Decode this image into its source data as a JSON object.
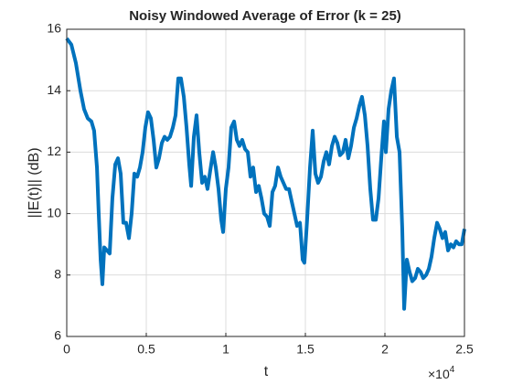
{
  "chart_data": {
    "type": "line",
    "title": "Noisy Windowed Average of Error (k = 25)",
    "x_label": "t",
    "y_label": "||E(t)|| (dB)",
    "x_multiplier": {
      "base": "×10",
      "exponent": "4"
    },
    "xlim": [
      0,
      25000
    ],
    "ylim": [
      6,
      16
    ],
    "xticks": [
      0,
      {
        "value": 5000,
        "label": "0.5"
      },
      {
        "value": 10000,
        "label": "1"
      },
      {
        "value": 15000,
        "label": "1.5"
      },
      {
        "value": 20000,
        "label": "2"
      },
      {
        "value": 25000,
        "label": "2.5"
      }
    ],
    "yticks": [
      6,
      8,
      10,
      12,
      14,
      16
    ],
    "grid": true,
    "series": [
      {
        "color": "#0072bd",
        "x": [
          0,
          290,
          575,
          860,
          1090,
          1320,
          1550,
          1720,
          1900,
          2010,
          2130,
          2240,
          2360,
          2530,
          2700,
          2870,
          3050,
          3220,
          3390,
          3560,
          3730,
          3910,
          4080,
          4250,
          4430,
          4600,
          4770,
          4940,
          5110,
          5290,
          5460,
          5630,
          5800,
          5980,
          6150,
          6320,
          6490,
          6670,
          6840,
          7010,
          7180,
          7360,
          7530,
          7700,
          7820,
          7990,
          8160,
          8330,
          8510,
          8680,
          8850,
          9020,
          9200,
          9370,
          9540,
          9710,
          9830,
          10000,
          10170,
          10340,
          10520,
          10690,
          10860,
          11030,
          11210,
          11380,
          11550,
          11720,
          11900,
          12070,
          12240,
          12410,
          12590,
          12760,
          12930,
          13100,
          13280,
          13450,
          13620,
          13790,
          13970,
          14140,
          14310,
          14480,
          14660,
          14830,
          14940,
          15110,
          15290,
          15460,
          15630,
          15800,
          15980,
          16150,
          16320,
          16490,
          16670,
          16840,
          17010,
          17180,
          17360,
          17530,
          17700,
          17870,
          18050,
          18220,
          18390,
          18560,
          18740,
          18910,
          19080,
          19250,
          19430,
          19600,
          19770,
          19940,
          20060,
          20230,
          20400,
          20570,
          20750,
          20920,
          21090,
          21210,
          21380,
          21550,
          21720,
          21900,
          22070,
          22240,
          22410,
          22590,
          22760,
          22930,
          23100,
          23280,
          23450,
          23620,
          23790,
          23970,
          24140,
          24310,
          24480,
          24660,
          24830,
          25000
        ],
        "values": [
          15.7,
          15.5,
          14.9,
          14.0,
          13.4,
          13.1,
          13.0,
          12.7,
          11.5,
          10.0,
          8.5,
          7.7,
          8.9,
          8.8,
          8.7,
          10.5,
          11.6,
          11.8,
          11.3,
          9.7,
          9.7,
          9.2,
          10.0,
          11.3,
          11.2,
          11.5,
          12.0,
          12.8,
          13.3,
          13.1,
          12.4,
          11.5,
          11.8,
          12.3,
          12.5,
          12.4,
          12.5,
          12.8,
          13.2,
          14.4,
          14.4,
          13.8,
          12.8,
          11.6,
          10.9,
          12.5,
          13.2,
          12.0,
          11.0,
          11.2,
          10.8,
          11.4,
          12.0,
          11.5,
          10.8,
          9.8,
          9.4,
          10.8,
          11.5,
          12.8,
          13.0,
          12.4,
          12.2,
          12.4,
          12.1,
          12.0,
          11.2,
          11.5,
          10.7,
          10.9,
          10.5,
          10.0,
          9.9,
          9.6,
          10.7,
          10.9,
          11.5,
          11.2,
          11.0,
          10.8,
          10.8,
          10.4,
          10.0,
          9.6,
          9.7,
          8.5,
          8.4,
          9.8,
          11.5,
          12.7,
          11.3,
          11.0,
          11.2,
          11.7,
          12.0,
          11.6,
          12.2,
          12.5,
          12.3,
          11.9,
          12.0,
          12.4,
          11.8,
          12.2,
          12.8,
          13.1,
          13.5,
          13.8,
          13.2,
          12.2,
          10.8,
          9.8,
          9.8,
          10.5,
          11.8,
          13.0,
          12.0,
          13.4,
          14.0,
          14.4,
          12.5,
          12.0,
          9.5,
          6.9,
          8.5,
          8.1,
          7.8,
          7.9,
          8.2,
          8.1,
          7.9,
          8.0,
          8.2,
          8.6,
          9.2,
          9.7,
          9.5,
          9.2,
          9.4,
          8.8,
          9.0,
          8.9,
          9.1,
          9.0,
          9.0,
          9.5
        ]
      }
    ]
  }
}
